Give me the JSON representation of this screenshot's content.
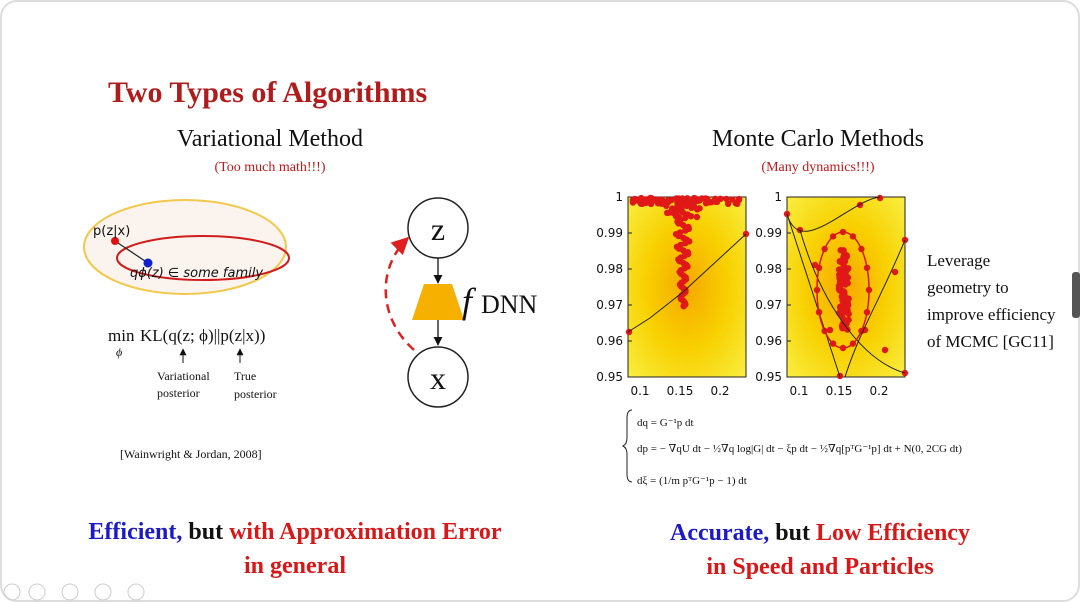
{
  "title": "Two Types of Algorithms",
  "variational": {
    "heading": "Variational Method",
    "note": "(Too much math!!!)",
    "diagram": {
      "p_label": "p(z|x)",
      "q_label": "qϕ(z) ∈ some family"
    },
    "objective": {
      "operator": "min",
      "subscript": "ϕ",
      "expression": "KL(q(z; ϕ)||p(z|x))"
    },
    "annotations": [
      [
        "Variational",
        "posterior"
      ],
      [
        "True",
        "posterior"
      ]
    ],
    "citation": "[Wainwright & Jordan, 2008]",
    "summary": {
      "first": "Efficient,",
      "middle": " but ",
      "last": "with Approximation Error",
      "second_line": "in general"
    }
  },
  "model": {
    "top_node": "z",
    "bottom_node": "x",
    "function": "f",
    "function_subscript": "DNN"
  },
  "monte_carlo": {
    "heading": "Monte Carlo Methods",
    "note": "(Many dynamics!!!)",
    "plots": [
      {
        "yticks": [
          "1",
          "0.99",
          "0.98",
          "0.97",
          "0.96",
          "0.95"
        ],
        "xticks": [
          "0.1",
          "0.15",
          "0.2"
        ]
      },
      {
        "yticks": [
          "1",
          "0.99",
          "0.98",
          "0.97",
          "0.96",
          "0.95"
        ],
        "xticks": [
          "0.1",
          "0.15",
          "0.2"
        ]
      }
    ],
    "side_text": [
      "Leverage",
      "geometry to",
      "improve efficiency",
      "of MCMC [GC11]"
    ],
    "equations": [
      "dq = G⁻¹p dt",
      "dp = − ∇qU dt − ½∇q log|G| dt − ξp dt − ½∇q[pᵀG⁻¹p] dt + N(0, 2CG dt)",
      "dξ = (1/m pᵀG⁻¹p − 1) dt"
    ],
    "summary": {
      "first": "Accurate,",
      "middle": " but ",
      "last": "Low Efficiency",
      "second_line": "in Speed and Particles"
    }
  }
}
